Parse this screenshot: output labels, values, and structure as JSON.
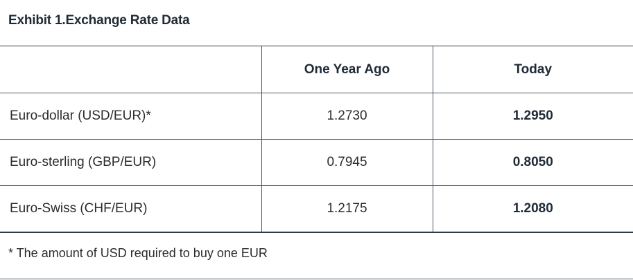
{
  "exhibit": {
    "title": "Exhibit 1.Exchange Rate Data"
  },
  "table": {
    "headers": [
      "",
      "One Year Ago",
      "Today"
    ],
    "rows": [
      {
        "label": "Euro-dollar (USD/EUR)*",
        "one_year_ago": "1.2730",
        "today": "1.2950"
      },
      {
        "label": "Euro-sterling (GBP/EUR)",
        "one_year_ago": "0.7945",
        "today": "0.8050"
      },
      {
        "label": "Euro-Swiss (CHF/EUR)",
        "one_year_ago": "1.2175",
        "today": "1.2080"
      }
    ]
  },
  "footnote": "* The amount of USD required to buy one EUR"
}
